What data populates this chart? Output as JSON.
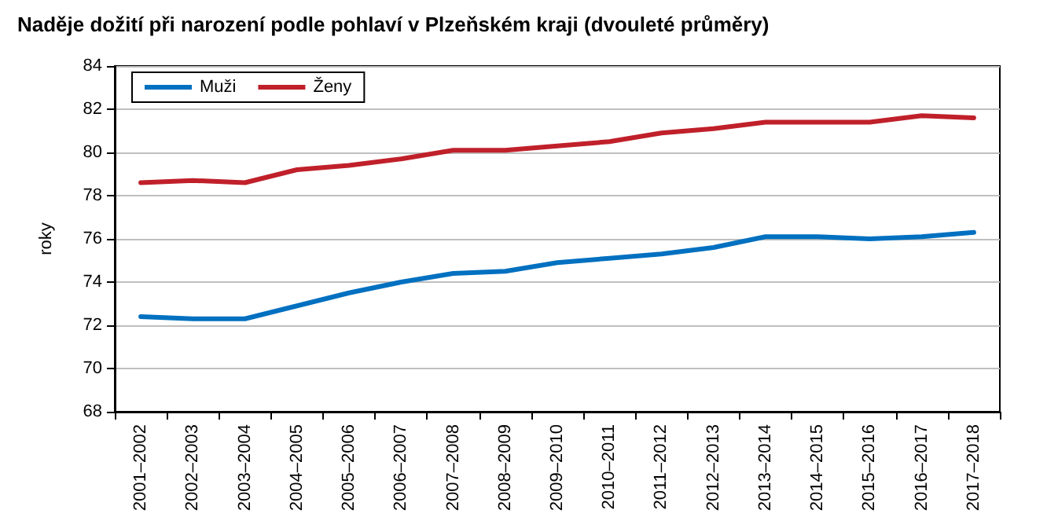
{
  "chart_data": {
    "type": "line",
    "title": "Naděje dožití při narození podle pohlaví v Plzeňském kraji (dvouleté průměry)",
    "ylabel": "roky",
    "categories": [
      "2001–2002",
      "2002–2003",
      "2003–2004",
      "2004–2005",
      "2005–2006",
      "2006–2007",
      "2007–2008",
      "2008–2009",
      "2009–2010",
      "2010–2011",
      "2011–2012",
      "2012–2013",
      "2013–2014",
      "2014–2015",
      "2015–2016",
      "2016–2017",
      "2017–2018"
    ],
    "series": [
      {
        "name": "Muži",
        "color": "#0070c0",
        "values": [
          72.4,
          72.3,
          72.3,
          72.9,
          73.5,
          74.0,
          74.4,
          74.5,
          74.9,
          75.1,
          75.3,
          75.6,
          76.1,
          76.1,
          76.0,
          76.1,
          76.3
        ]
      },
      {
        "name": "Ženy",
        "color": "#c0202a",
        "values": [
          78.6,
          78.7,
          78.6,
          79.2,
          79.4,
          79.7,
          80.1,
          80.1,
          80.3,
          80.5,
          80.9,
          81.1,
          81.4,
          81.4,
          81.4,
          81.7,
          81.6
        ]
      }
    ],
    "ylim": [
      68,
      84
    ],
    "yticks": [
      68,
      70,
      72,
      74,
      76,
      78,
      80,
      82,
      84
    ],
    "grid": "y",
    "legend": "top left",
    "marker": "none",
    "line_style": "solid"
  }
}
